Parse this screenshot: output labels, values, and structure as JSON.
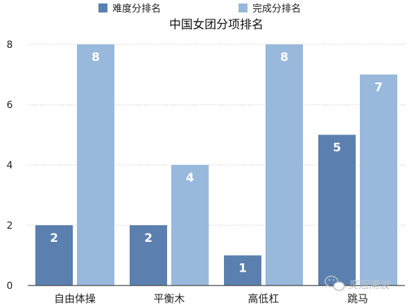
{
  "chart_data": {
    "type": "bar",
    "title": "中国女团分项排名",
    "categories": [
      "自由体操",
      "平衡木",
      "高低杠",
      "跳马"
    ],
    "series": [
      {
        "name": "难度分排名",
        "color": "#5b80b0",
        "values": [
          2,
          2,
          1,
          5
        ]
      },
      {
        "name": "完成分排名",
        "color": "#98b9dc",
        "values": [
          8,
          4,
          8,
          7
        ]
      }
    ],
    "yticks": [
      0,
      2,
      4,
      6,
      8
    ],
    "ylim": [
      0,
      8
    ],
    "grid": true,
    "legend_position": "top"
  },
  "watermark": {
    "text": "奕冠南波"
  }
}
